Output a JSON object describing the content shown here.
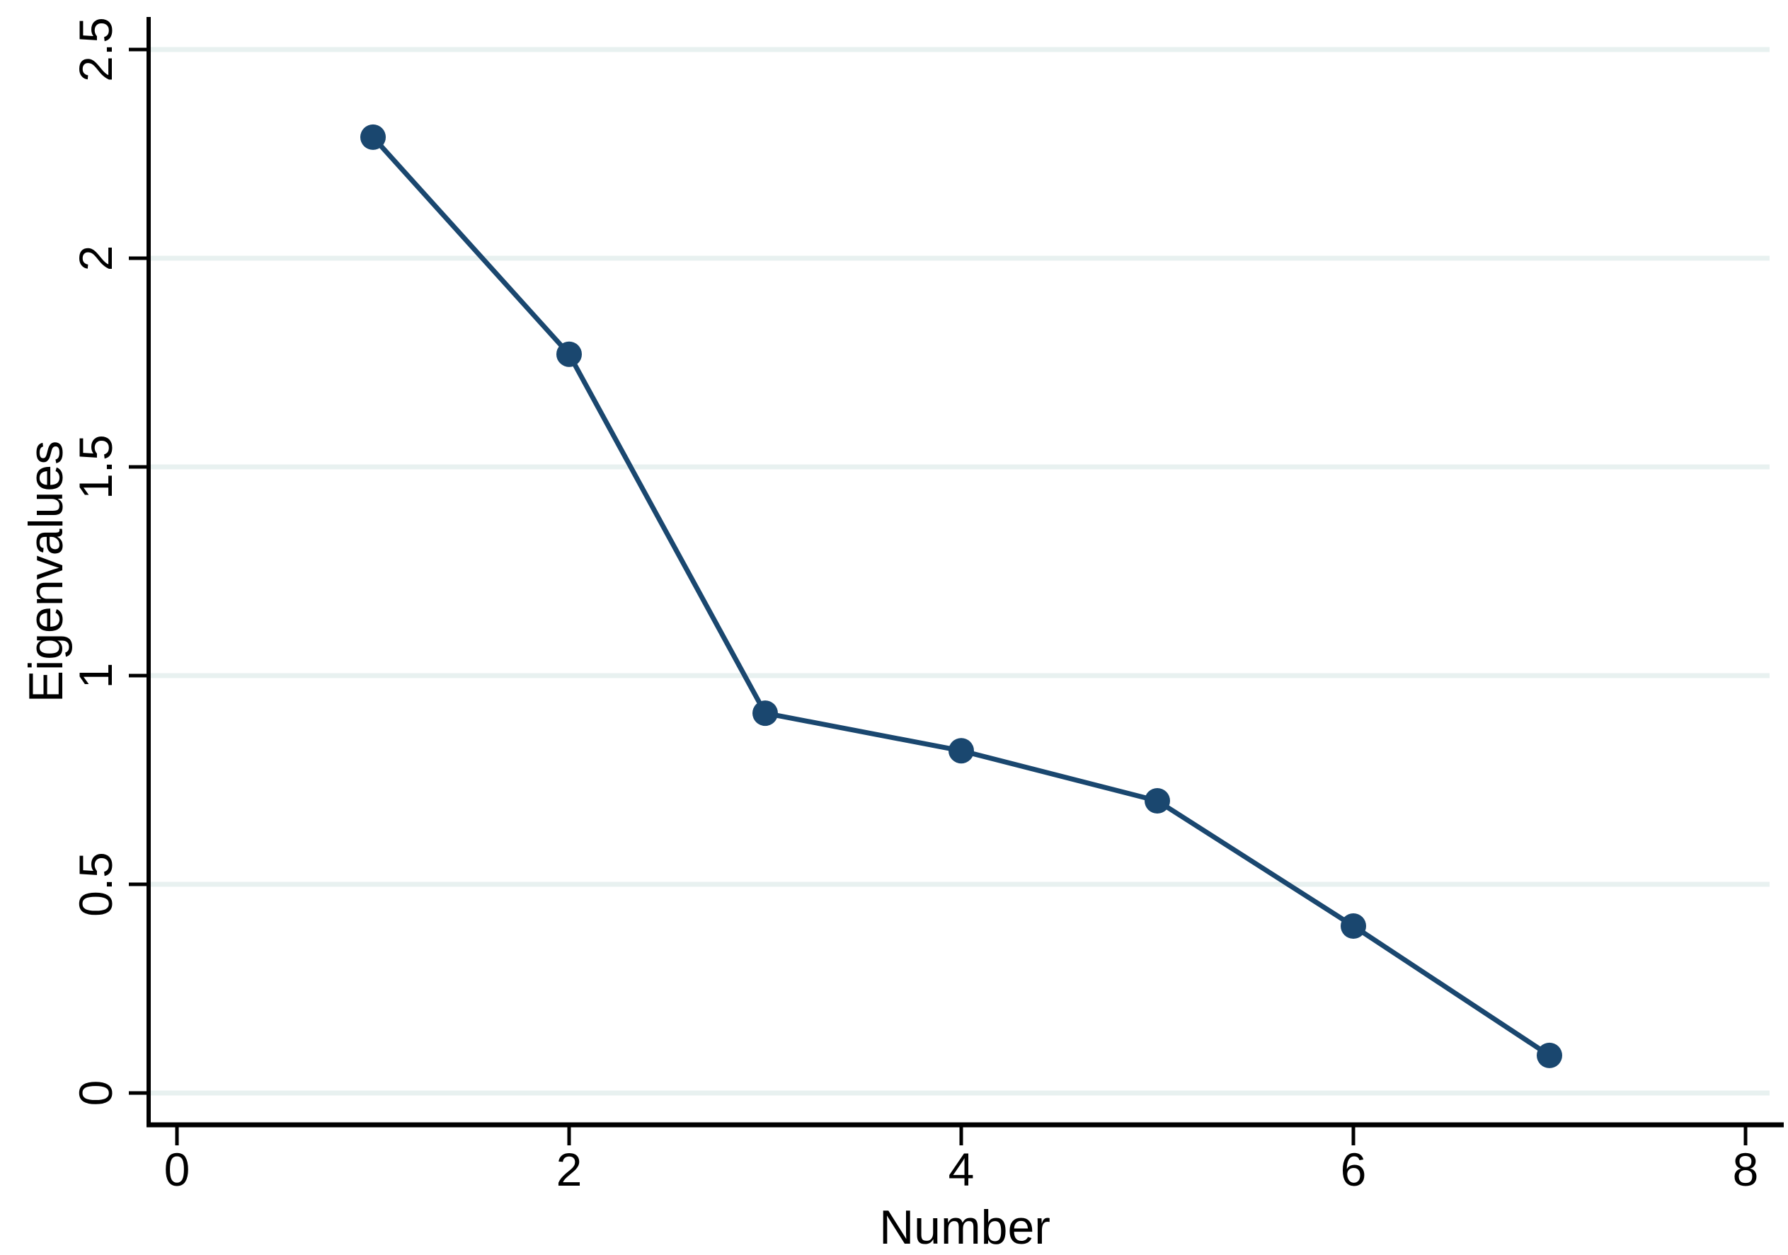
{
  "page": {
    "background": "#ffffff"
  },
  "chart_data": {
    "type": "line",
    "title": "",
    "xlabel": "Number",
    "ylabel": "Eigenvalues",
    "x": [
      1,
      2,
      3,
      4,
      5,
      6,
      7
    ],
    "y": [
      2.29,
      1.77,
      0.91,
      0.82,
      0.7,
      0.4,
      0.09
    ],
    "series": [
      {
        "name": "Eigenvalues",
        "x": [
          1,
          2,
          3,
          4,
          5,
          6,
          7
        ],
        "values": [
          2.29,
          1.77,
          0.91,
          0.82,
          0.7,
          0.4,
          0.09
        ]
      }
    ],
    "xlim": [
      0,
      8
    ],
    "ylim": [
      0,
      2.5
    ],
    "xticks": {
      "values": [
        0,
        2,
        4,
        6,
        8
      ],
      "labels": [
        "0",
        "2",
        "4",
        "6",
        "8"
      ]
    },
    "yticks": {
      "values": [
        0,
        0.5,
        1,
        1.5,
        2,
        2.5
      ],
      "labels": [
        "0",
        "0.5",
        "1",
        "1.5",
        "2",
        "2.5"
      ]
    },
    "grid": "horizontal-only",
    "legend": "none",
    "marker_shape": "filled-circle",
    "colors": {
      "line": "#1a476f",
      "marker": "#1a476f",
      "gridline": "#e8f1f0",
      "axis": "#000000",
      "text": "#000000",
      "background": "#ffffff"
    }
  }
}
